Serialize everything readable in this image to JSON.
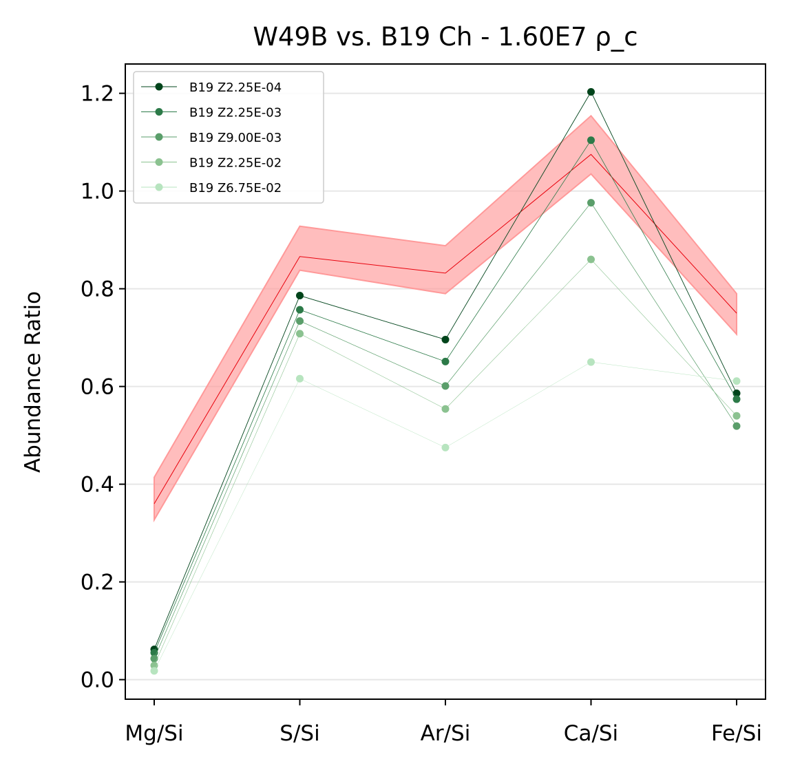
{
  "chart_data": {
    "type": "line",
    "title": "W49B vs. B19 Ch - 1.60E7 ρ_c",
    "xlabel": "",
    "ylabel": "Abundance Ratio",
    "categories": [
      "Mg/Si",
      "S/Si",
      "Ar/Si",
      "Ca/Si",
      "Fe/Si"
    ],
    "ylim": [
      -0.04,
      1.26
    ],
    "yticks": [
      0.0,
      0.2,
      0.4,
      0.6,
      0.8,
      1.0,
      1.2
    ],
    "ytick_labels": [
      "0.0",
      "0.2",
      "0.4",
      "0.6",
      "0.8",
      "1.0",
      "1.2"
    ],
    "grid": "horizontal",
    "legend_position": "top-left",
    "observed": {
      "values": [
        0.36,
        0.866,
        0.832,
        1.075,
        0.75
      ],
      "lower": [
        0.327,
        0.838,
        0.79,
        1.035,
        0.707
      ],
      "upper": [
        0.414,
        0.928,
        0.888,
        1.154,
        0.79
      ],
      "line_color": "#e8000b",
      "band_color": "#ff9999"
    },
    "series": [
      {
        "name": "B19 Z2.25E-04",
        "values": [
          0.062,
          0.786,
          0.696,
          1.203,
          0.586
        ],
        "color": "#00441b"
      },
      {
        "name": "B19 Z2.25E-03",
        "values": [
          0.055,
          0.757,
          0.651,
          1.104,
          0.574
        ],
        "color": "#2c7a48"
      },
      {
        "name": "B19 Z9.00E-03",
        "values": [
          0.043,
          0.734,
          0.601,
          0.976,
          0.519
        ],
        "color": "#5a9e6a"
      },
      {
        "name": "B19 Z2.25E-02",
        "values": [
          0.029,
          0.708,
          0.554,
          0.86,
          0.54
        ],
        "color": "#8bc290"
      },
      {
        "name": "B19 Z6.75E-02",
        "values": [
          0.018,
          0.616,
          0.475,
          0.65,
          0.611
        ],
        "color": "#b7e4bf"
      }
    ]
  }
}
